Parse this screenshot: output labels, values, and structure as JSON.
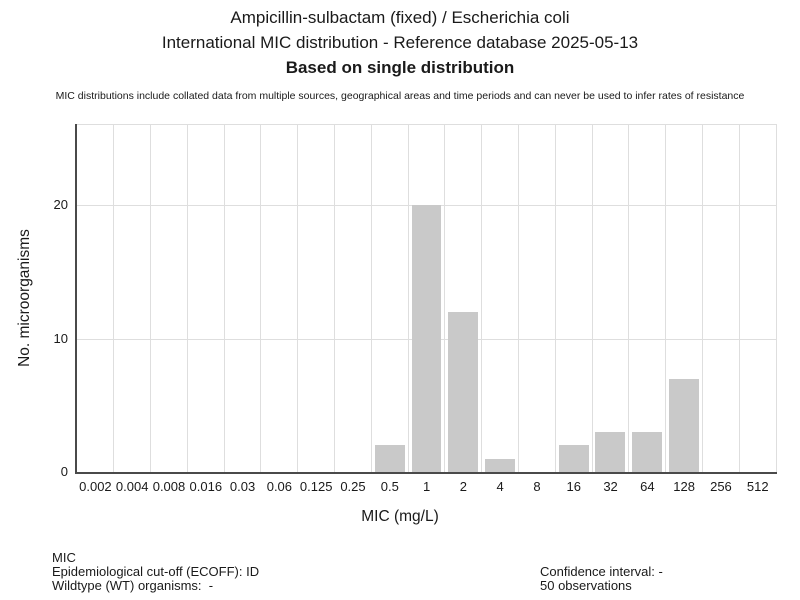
{
  "header": {
    "title_line1": "Ampicillin-sulbactam (fixed) / Escherichia coli",
    "title_line2": "International MIC distribution - Reference database 2025-05-13",
    "title_line3": "Based on single distribution",
    "disclaimer": "MIC distributions include collated data from multiple sources, geographical areas and time periods and can never be used to infer rates of resistance"
  },
  "chart_data": {
    "type": "bar",
    "title": "Ampicillin-sulbactam (fixed) / Escherichia coli — International MIC distribution",
    "categories": [
      "0.002",
      "0.004",
      "0.008",
      "0.016",
      "0.03",
      "0.06",
      "0.125",
      "0.25",
      "0.5",
      "1",
      "2",
      "4",
      "8",
      "16",
      "32",
      "64",
      "128",
      "256",
      "512"
    ],
    "values": [
      0,
      0,
      0,
      0,
      0,
      0,
      0,
      0,
      2,
      20,
      12,
      1,
      0,
      2,
      3,
      3,
      7,
      0,
      0
    ],
    "xlabel": "MIC (mg/L)",
    "ylabel": "No. microorganisms",
    "ylim": [
      0,
      26
    ],
    "yticks": [
      0,
      10,
      20
    ],
    "grid": "on",
    "legend": "none",
    "bar_color": "#c9c9c9",
    "gridline_color": "#dedede",
    "axis_color": "#4a4a4a"
  },
  "footer": {
    "left": [
      "MIC",
      "Epidemiological cut-off (ECOFF): ID",
      "Wildtype (WT) organisms:  -"
    ],
    "right": [
      "Confidence interval: -",
      "50 observations"
    ]
  }
}
